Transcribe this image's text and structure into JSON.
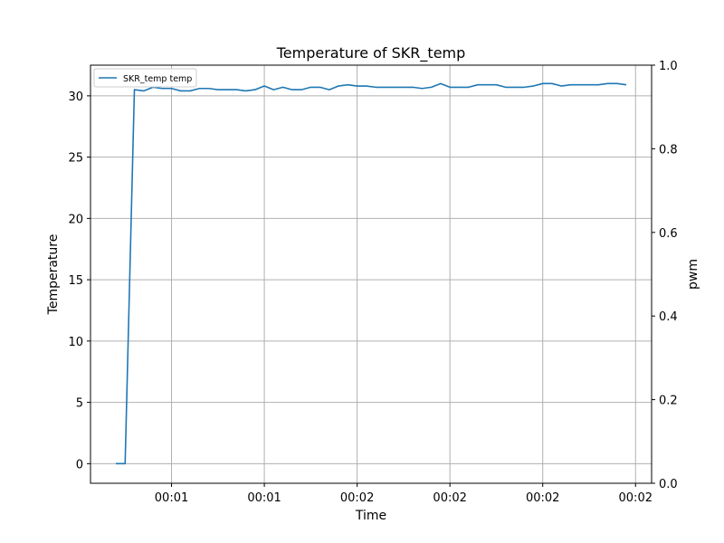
{
  "chart_data": {
    "type": "line",
    "title": "Temperature of SKR_temp",
    "xlabel": "Time",
    "ylabel": "Temperature",
    "y2label": "pwm",
    "x_tick_labels": [
      "00:01",
      "00:01",
      "00:02",
      "00:02",
      "00:02",
      "00:02"
    ],
    "ylim": [
      -1.6,
      32.5
    ],
    "y_ticks": [
      0,
      5,
      10,
      15,
      20,
      25,
      30
    ],
    "y2lim": [
      0,
      1
    ],
    "y2_ticks": [
      "0.0",
      "0.2",
      "0.4",
      "0.6",
      "0.8",
      "1.0"
    ],
    "grid": true,
    "legend_position": "top-left",
    "series": [
      {
        "name": "SKR_temp temp",
        "color": "#1f77b4",
        "values": [
          0,
          0,
          30.5,
          30.4,
          30.7,
          30.6,
          30.6,
          30.4,
          30.4,
          30.6,
          30.6,
          30.5,
          30.5,
          30.5,
          30.4,
          30.5,
          30.8,
          30.5,
          30.7,
          30.5,
          30.5,
          30.7,
          30.7,
          30.5,
          30.8,
          30.9,
          30.8,
          30.8,
          30.7,
          30.7,
          30.7,
          30.7,
          30.7,
          30.6,
          30.7,
          31.0,
          30.7,
          30.7,
          30.7,
          30.9,
          30.9,
          30.9,
          30.7,
          30.7,
          30.7,
          30.8,
          31.0,
          31.0,
          30.8,
          30.9,
          30.9,
          30.9,
          30.9,
          31.0,
          31.0,
          30.9
        ]
      }
    ]
  }
}
